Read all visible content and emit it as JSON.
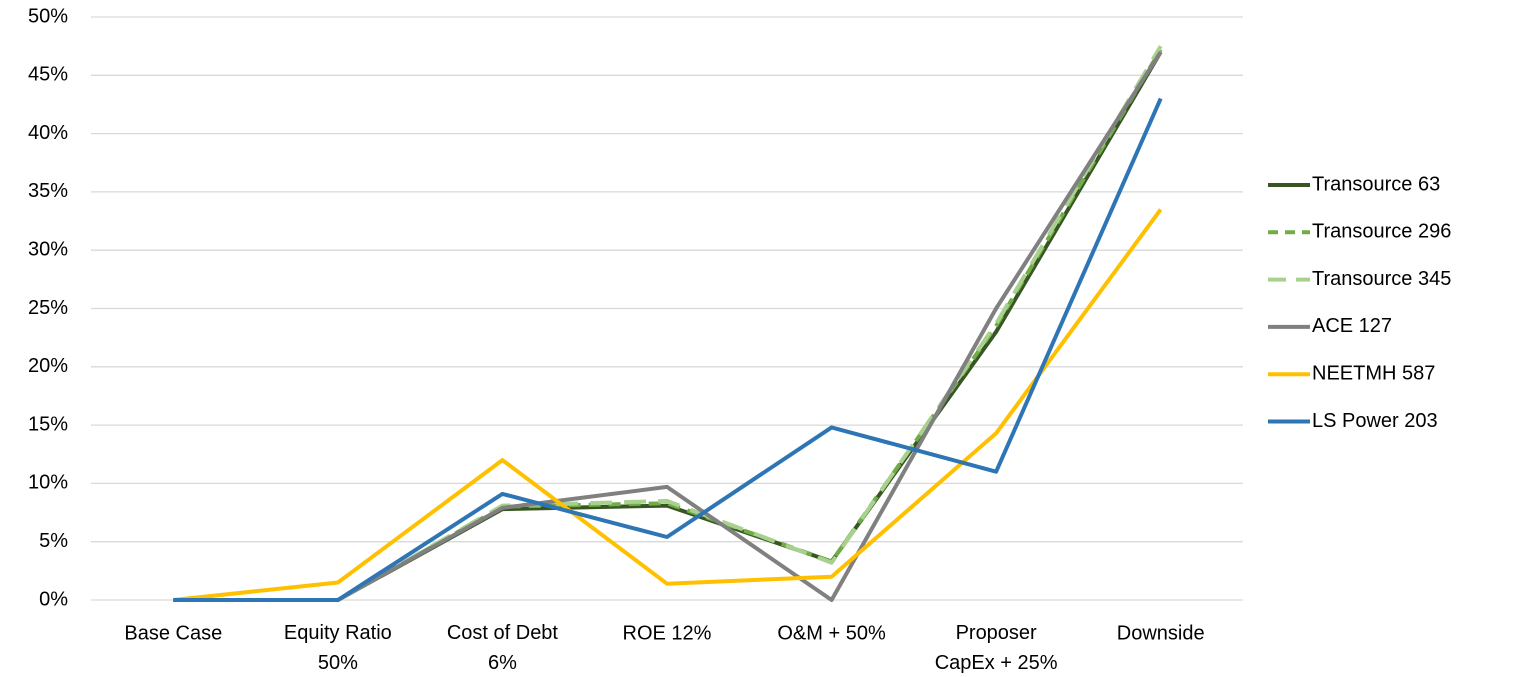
{
  "chart_data": {
    "type": "line",
    "categories": [
      "Base Case",
      "Equity Ratio\n50%",
      "Cost of Debt\n6%",
      "ROE 12%",
      "O&M + 50%",
      "Proposer\nCapEx + 25%",
      "Downside"
    ],
    "series": [
      {
        "name": "Transource 63",
        "color": "#375623",
        "dash": "solid",
        "values": [
          0,
          0,
          7.8,
          8.1,
          3.3,
          23,
          47
        ]
      },
      {
        "name": "Transource 296",
        "color": "#70ad47",
        "dash": "dash",
        "values": [
          0,
          0,
          8.0,
          8.3,
          3.3,
          23.5,
          47.2
        ]
      },
      {
        "name": "Transource 345",
        "color": "#a9d18e",
        "dash": "longdash",
        "values": [
          0,
          0,
          8.1,
          8.5,
          3.2,
          23.7,
          47.5
        ]
      },
      {
        "name": "ACE 127",
        "color": "#808080",
        "dash": "solid",
        "values": [
          0,
          0,
          7.9,
          9.7,
          0,
          25,
          47
        ]
      },
      {
        "name": "NEETMH 587",
        "color": "#ffc000",
        "dash": "solid",
        "values": [
          0,
          1.5,
          12,
          1.4,
          2,
          14.3,
          33.5
        ]
      },
      {
        "name": "LS Power 203",
        "color": "#2e75b6",
        "dash": "solid",
        "values": [
          0,
          0,
          9.1,
          5.4,
          14.8,
          11,
          43
        ]
      }
    ],
    "ylim": [
      0,
      50
    ],
    "yticks": [
      {
        "value": 0,
        "label": "0%"
      },
      {
        "value": 5,
        "label": "5%"
      },
      {
        "value": 10,
        "label": "10%"
      },
      {
        "value": 15,
        "label": "15%"
      },
      {
        "value": 20,
        "label": "20%"
      },
      {
        "value": 25,
        "label": "25%"
      },
      {
        "value": 30,
        "label": "30%"
      },
      {
        "value": 35,
        "label": "35%"
      },
      {
        "value": 40,
        "label": "40%"
      },
      {
        "value": 45,
        "label": "45%"
      },
      {
        "value": 50,
        "label": "50%"
      }
    ],
    "grid": true,
    "legend": "right"
  }
}
